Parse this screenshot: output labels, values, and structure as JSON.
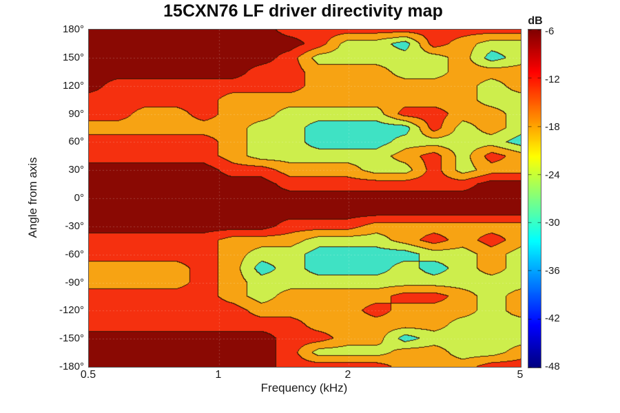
{
  "title": "15CXN76 LF driver directivity map",
  "chart_data": {
    "type": "heatmap",
    "title": "15CXN76 LF driver directivity map",
    "xlabel": "Frequency (kHz)",
    "ylabel": "Angle from axis",
    "x_scale": "log",
    "x_range_khz": [
      0.5,
      5
    ],
    "x_tick_values": [
      0.5,
      1,
      2,
      5
    ],
    "x_tick_labels": [
      "0.5",
      "1",
      "2",
      "5"
    ],
    "y_range_deg": [
      -180,
      180
    ],
    "y_tick_values": [
      180,
      150,
      120,
      90,
      60,
      30,
      0,
      -30,
      -60,
      -90,
      -120,
      -150,
      -180
    ],
    "y_tick_labels": [
      "180°",
      "150°",
      "120°",
      "90°",
      "60°",
      "30°",
      "0°",
      "-30°",
      "-60°",
      "-90°",
      "-120°",
      "-150°",
      "-180°"
    ],
    "grid_on": true,
    "band_step_db": 6,
    "band_thresholds_db": [
      -24,
      -18,
      -12,
      -6
    ],
    "band_colors_low_to_high": [
      "#3FE2C4",
      "#CDEE4C",
      "#F7A313",
      "#F5300F",
      "#8A0903"
    ],
    "band_meaning_low_to_high": [
      "-30 to -24 dB",
      "-24 to -18 dB",
      "-18 to -12 dB",
      "-12 to -6 dB",
      "-6 to 0 dB"
    ],
    "contour_line_color": "#331405",
    "gridline_color": "rgba(255,255,255,0.22)",
    "freqs_khz": [
      0.5,
      0.58,
      0.68,
      0.79,
      0.92,
      1.08,
      1.26,
      1.46,
      1.71,
      1.99,
      2.32,
      2.71,
      3.16,
      3.68,
      4.29,
      5.0
    ],
    "angles_deg": [
      180,
      165,
      150,
      135,
      120,
      105,
      90,
      75,
      60,
      45,
      30,
      15,
      0,
      -15,
      -30,
      -45,
      -60,
      -75,
      -90,
      -105,
      -120,
      -135,
      -150,
      -165,
      -180
    ],
    "values_db": [
      [
        -3,
        -3,
        -3,
        -3,
        -3,
        -3,
        -3,
        -9,
        -9,
        -9,
        -9,
        -9,
        -9,
        -9,
        -9,
        -9
      ],
      [
        -3,
        -3,
        -3,
        -3,
        -3,
        -3,
        -3,
        -3,
        -9,
        -21,
        -21,
        -27,
        -9,
        -15,
        -21,
        -21
      ],
      [
        -3,
        -3,
        -3,
        -3,
        -3,
        -3,
        -3,
        -9,
        -21,
        -21,
        -21,
        -21,
        -21,
        -15,
        -27,
        -21
      ],
      [
        -3,
        -3,
        -3,
        -3,
        -3,
        -3,
        -9,
        -9,
        -15,
        -15,
        -15,
        -21,
        -21,
        -15,
        -15,
        -15
      ],
      [
        -3,
        -9,
        -9,
        -9,
        -9,
        -9,
        -9,
        -9,
        -15,
        -15,
        -15,
        -15,
        -15,
        -15,
        -21,
        -15
      ],
      [
        -9,
        -9,
        -9,
        -9,
        -9,
        -15,
        -15,
        -15,
        -15,
        -15,
        -15,
        -15,
        -15,
        -15,
        -21,
        -21
      ],
      [
        -9,
        -9,
        -15,
        -15,
        -9,
        -15,
        -15,
        -21,
        -21,
        -21,
        -21,
        -9,
        -9,
        -15,
        -15,
        -21
      ],
      [
        -15,
        -15,
        -15,
        -15,
        -15,
        -15,
        -21,
        -21,
        -27,
        -27,
        -27,
        -27,
        -9,
        -21,
        -15,
        -21
      ],
      [
        -9,
        -9,
        -9,
        -9,
        -9,
        -15,
        -21,
        -21,
        -27,
        -27,
        -27,
        -21,
        -21,
        -21,
        -21,
        -27
      ],
      [
        -9,
        -9,
        -9,
        -9,
        -9,
        -15,
        -21,
        -21,
        -21,
        -21,
        -21,
        -15,
        -9,
        -21,
        -9,
        -15
      ],
      [
        -3,
        -3,
        -3,
        -3,
        -3,
        -9,
        -9,
        -15,
        -15,
        -15,
        -21,
        -21,
        -9,
        -21,
        -15,
        -15
      ],
      [
        -3,
        -3,
        -3,
        -3,
        -3,
        -3,
        -3,
        -9,
        -9,
        -9,
        -9,
        -9,
        -9,
        -9,
        -3,
        -3
      ],
      [
        -3,
        -3,
        -3,
        -3,
        -3,
        -3,
        -3,
        -3,
        -3,
        -3,
        -3,
        -3,
        -3,
        -3,
        -3,
        -3
      ],
      [
        -3,
        -3,
        -3,
        -3,
        -3,
        -3,
        -3,
        -3,
        -3,
        -3,
        -3,
        -3,
        -3,
        -3,
        -3,
        -3
      ],
      [
        -3,
        -3,
        -3,
        -3,
        -3,
        -3,
        -3,
        -9,
        -9,
        -9,
        -15,
        -15,
        -15,
        -15,
        -15,
        -15
      ],
      [
        -9,
        -9,
        -9,
        -9,
        -9,
        -15,
        -15,
        -15,
        -21,
        -21,
        -21,
        -15,
        -9,
        -15,
        -9,
        -15
      ],
      [
        -9,
        -9,
        -9,
        -9,
        -9,
        -15,
        -21,
        -21,
        -27,
        -27,
        -27,
        -27,
        -21,
        -21,
        -15,
        -21
      ],
      [
        -15,
        -15,
        -15,
        -15,
        -9,
        -15,
        -27,
        -21,
        -27,
        -27,
        -27,
        -21,
        -27,
        -21,
        -15,
        -21
      ],
      [
        -15,
        -15,
        -15,
        -15,
        -9,
        -15,
        -21,
        -21,
        -21,
        -21,
        -21,
        -21,
        -21,
        -21,
        -21,
        -21
      ],
      [
        -9,
        -9,
        -9,
        -9,
        -9,
        -15,
        -21,
        -15,
        -15,
        -15,
        -15,
        -9,
        -9,
        -15,
        -21,
        -15
      ],
      [
        -9,
        -9,
        -9,
        -9,
        -9,
        -9,
        -15,
        -15,
        -15,
        -15,
        -9,
        -15,
        -15,
        -15,
        -21,
        -15
      ],
      [
        -9,
        -9,
        -9,
        -9,
        -9,
        -9,
        -9,
        -9,
        -15,
        -15,
        -15,
        -15,
        -15,
        -21,
        -21,
        -21
      ],
      [
        -3,
        -3,
        -3,
        -3,
        -3,
        -3,
        -3,
        -9,
        -9,
        -15,
        -15,
        -27,
        -21,
        -21,
        -21,
        -21
      ],
      [
        -3,
        -3,
        -3,
        -3,
        -3,
        -3,
        -3,
        -9,
        -21,
        -21,
        -21,
        -15,
        -15,
        -21,
        -21,
        -15
      ],
      [
        -3,
        -3,
        -3,
        -3,
        -3,
        -3,
        -3,
        -9,
        -9,
        -9,
        -9,
        -15,
        -15,
        -15,
        -9,
        -9
      ]
    ],
    "colorbar": {
      "label": "dB",
      "colormap": "jet",
      "max_db": -6,
      "min_db": -48,
      "tick_values": [
        -6,
        -12,
        -18,
        -24,
        -30,
        -36,
        -42,
        -48
      ],
      "tick_labels": [
        "-6",
        "-12",
        "-18",
        "-24",
        "-30",
        "-36",
        "-42",
        "-48"
      ]
    }
  }
}
